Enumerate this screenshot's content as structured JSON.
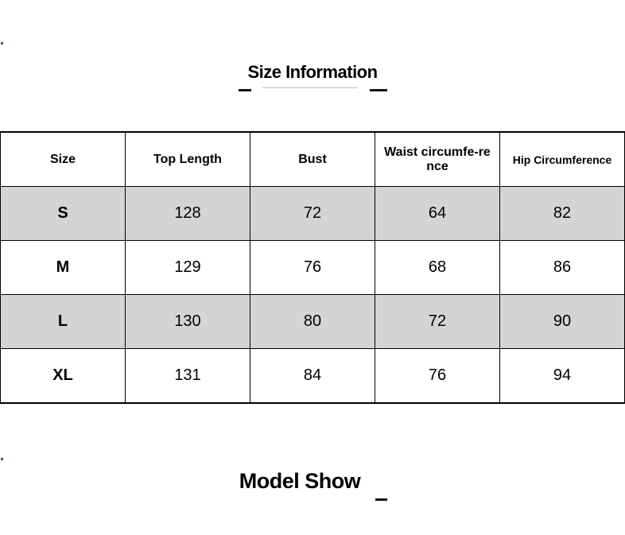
{
  "section_title": "Size Information",
  "footer_title": "Model Show",
  "table": {
    "headers": [
      "Size",
      "Top Length",
      "Bust",
      "Waist circumfe-rence",
      "Hip Circumference"
    ],
    "rows": [
      [
        "S",
        "128",
        "72",
        "64",
        "82"
      ],
      [
        "M",
        "129",
        "76",
        "68",
        "86"
      ],
      [
        "L",
        "130",
        "80",
        "72",
        "90"
      ],
      [
        "XL",
        "131",
        "84",
        "76",
        "94"
      ]
    ]
  },
  "colors": {
    "shaded_row": "#d4d4d4",
    "border": "#000000"
  }
}
